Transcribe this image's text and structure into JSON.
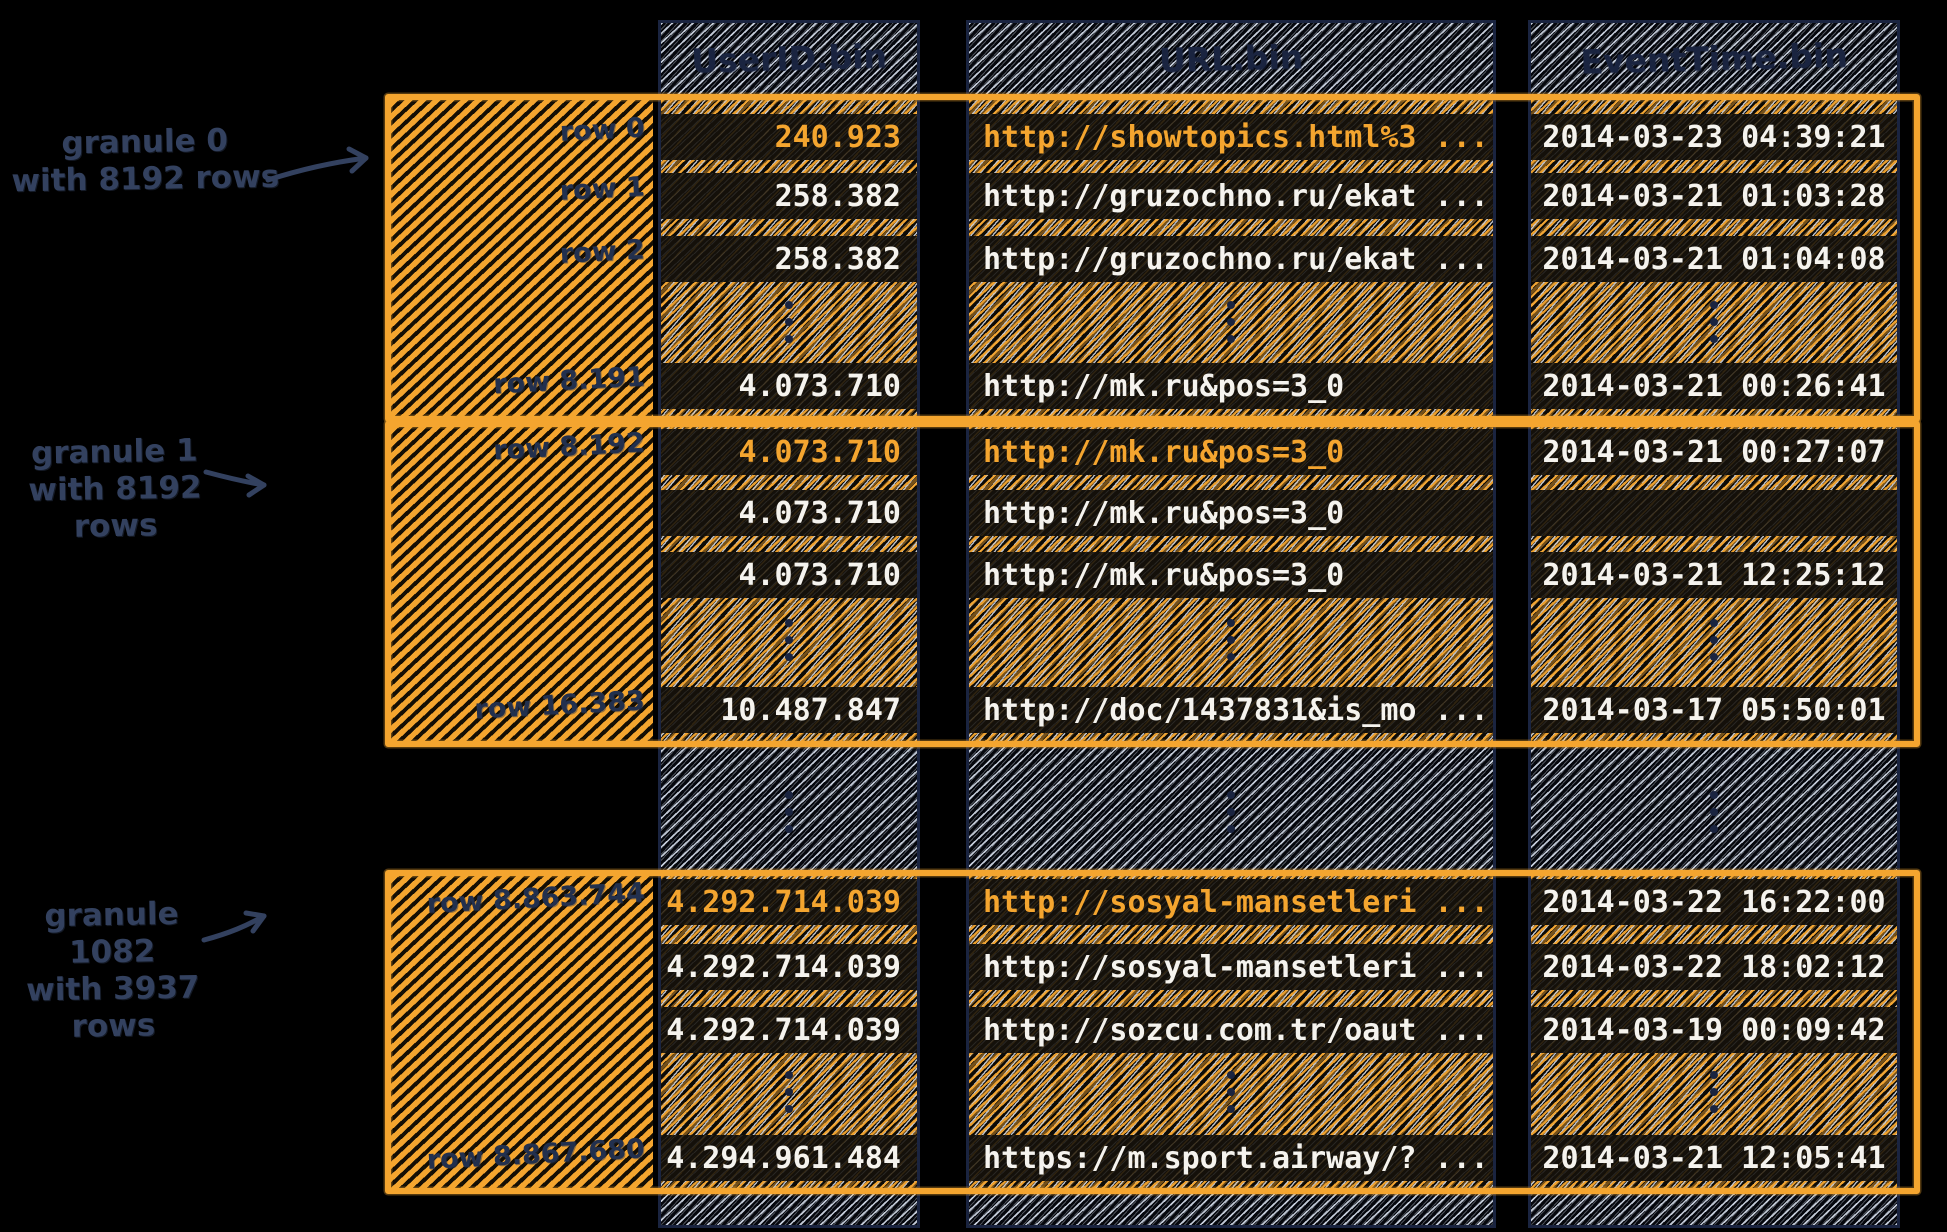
{
  "colors": {
    "accent_orange": "#f4a52f",
    "ink_navy": "#22304e",
    "value_white": "#f5f3ee",
    "hatch_gray": "#d0d8e6",
    "background": "#000000"
  },
  "columns": [
    {
      "header": "UserID.bin"
    },
    {
      "header": "URL.bin"
    },
    {
      "header": "EventTime.bin"
    }
  ],
  "granules": [
    {
      "annotation_line1": "granule 0",
      "annotation_line2": "with 8192 rows",
      "rows": [
        {
          "label": "row 0",
          "values": [
            "240.923",
            "http://showtopics.html%3 ...",
            "2014-03-23 04:39:21"
          ],
          "highlight": [
            true,
            true,
            false
          ]
        },
        {
          "label": "row 1",
          "values": [
            "258.382",
            "http://gruzochno.ru/ekat ...",
            "2014-03-21 01:03:28"
          ],
          "highlight": [
            false,
            false,
            false
          ]
        },
        {
          "label": "row 2",
          "values": [
            "258.382",
            "http://gruzochno.ru/ekat ...",
            "2014-03-21 01:04:08"
          ],
          "highlight": [
            false,
            false,
            false
          ]
        },
        {
          "label": "row 8.191",
          "values": [
            "4.073.710",
            "http://mk.ru&pos=3_0",
            "2014-03-21 00:26:41"
          ],
          "highlight": [
            false,
            false,
            false
          ]
        }
      ]
    },
    {
      "annotation_line1": "granule 1",
      "annotation_line2": "with 8192 rows",
      "rows": [
        {
          "label": "row 8.192",
          "values": [
            "4.073.710",
            "http://mk.ru&pos=3_0",
            "2014-03-21 00:27:07"
          ],
          "highlight": [
            true,
            true,
            false
          ]
        },
        {
          "label": "",
          "values": [
            "4.073.710",
            "http://mk.ru&pos=3_0",
            ""
          ],
          "highlight": [
            false,
            false,
            false
          ]
        },
        {
          "label": "",
          "values": [
            "4.073.710",
            "http://mk.ru&pos=3_0",
            "2014-03-21 12:25:12"
          ],
          "highlight": [
            false,
            false,
            false
          ]
        },
        {
          "label": "row 16.383",
          "values": [
            "10.487.847",
            "http://doc/1437831&is_mo ...",
            "2014-03-17 05:50:01"
          ],
          "highlight": [
            false,
            false,
            false
          ]
        }
      ]
    },
    {
      "annotation_line1": "granule 1082",
      "annotation_line2": "with 3937 rows",
      "rows": [
        {
          "label": "row 8.863.744",
          "values": [
            "4.292.714.039",
            "http://sosyal-mansetleri ...",
            "2014-03-22 16:22:00"
          ],
          "highlight": [
            true,
            true,
            false
          ]
        },
        {
          "label": "",
          "values": [
            "4.292.714.039",
            "http://sosyal-mansetleri ...",
            "2014-03-22 18:02:12"
          ],
          "highlight": [
            false,
            false,
            false
          ]
        },
        {
          "label": "",
          "values": [
            "4.292.714.039",
            "http://sozcu.com.tr/oaut ...",
            "2014-03-19 00:09:42"
          ],
          "highlight": [
            false,
            false,
            false
          ]
        },
        {
          "label": "row 8.867.680",
          "values": [
            "4.294.961.484",
            "https://m.sport.airway/? ...",
            "2014-03-21 12:05:41"
          ],
          "highlight": [
            false,
            false,
            false
          ]
        }
      ]
    }
  ]
}
